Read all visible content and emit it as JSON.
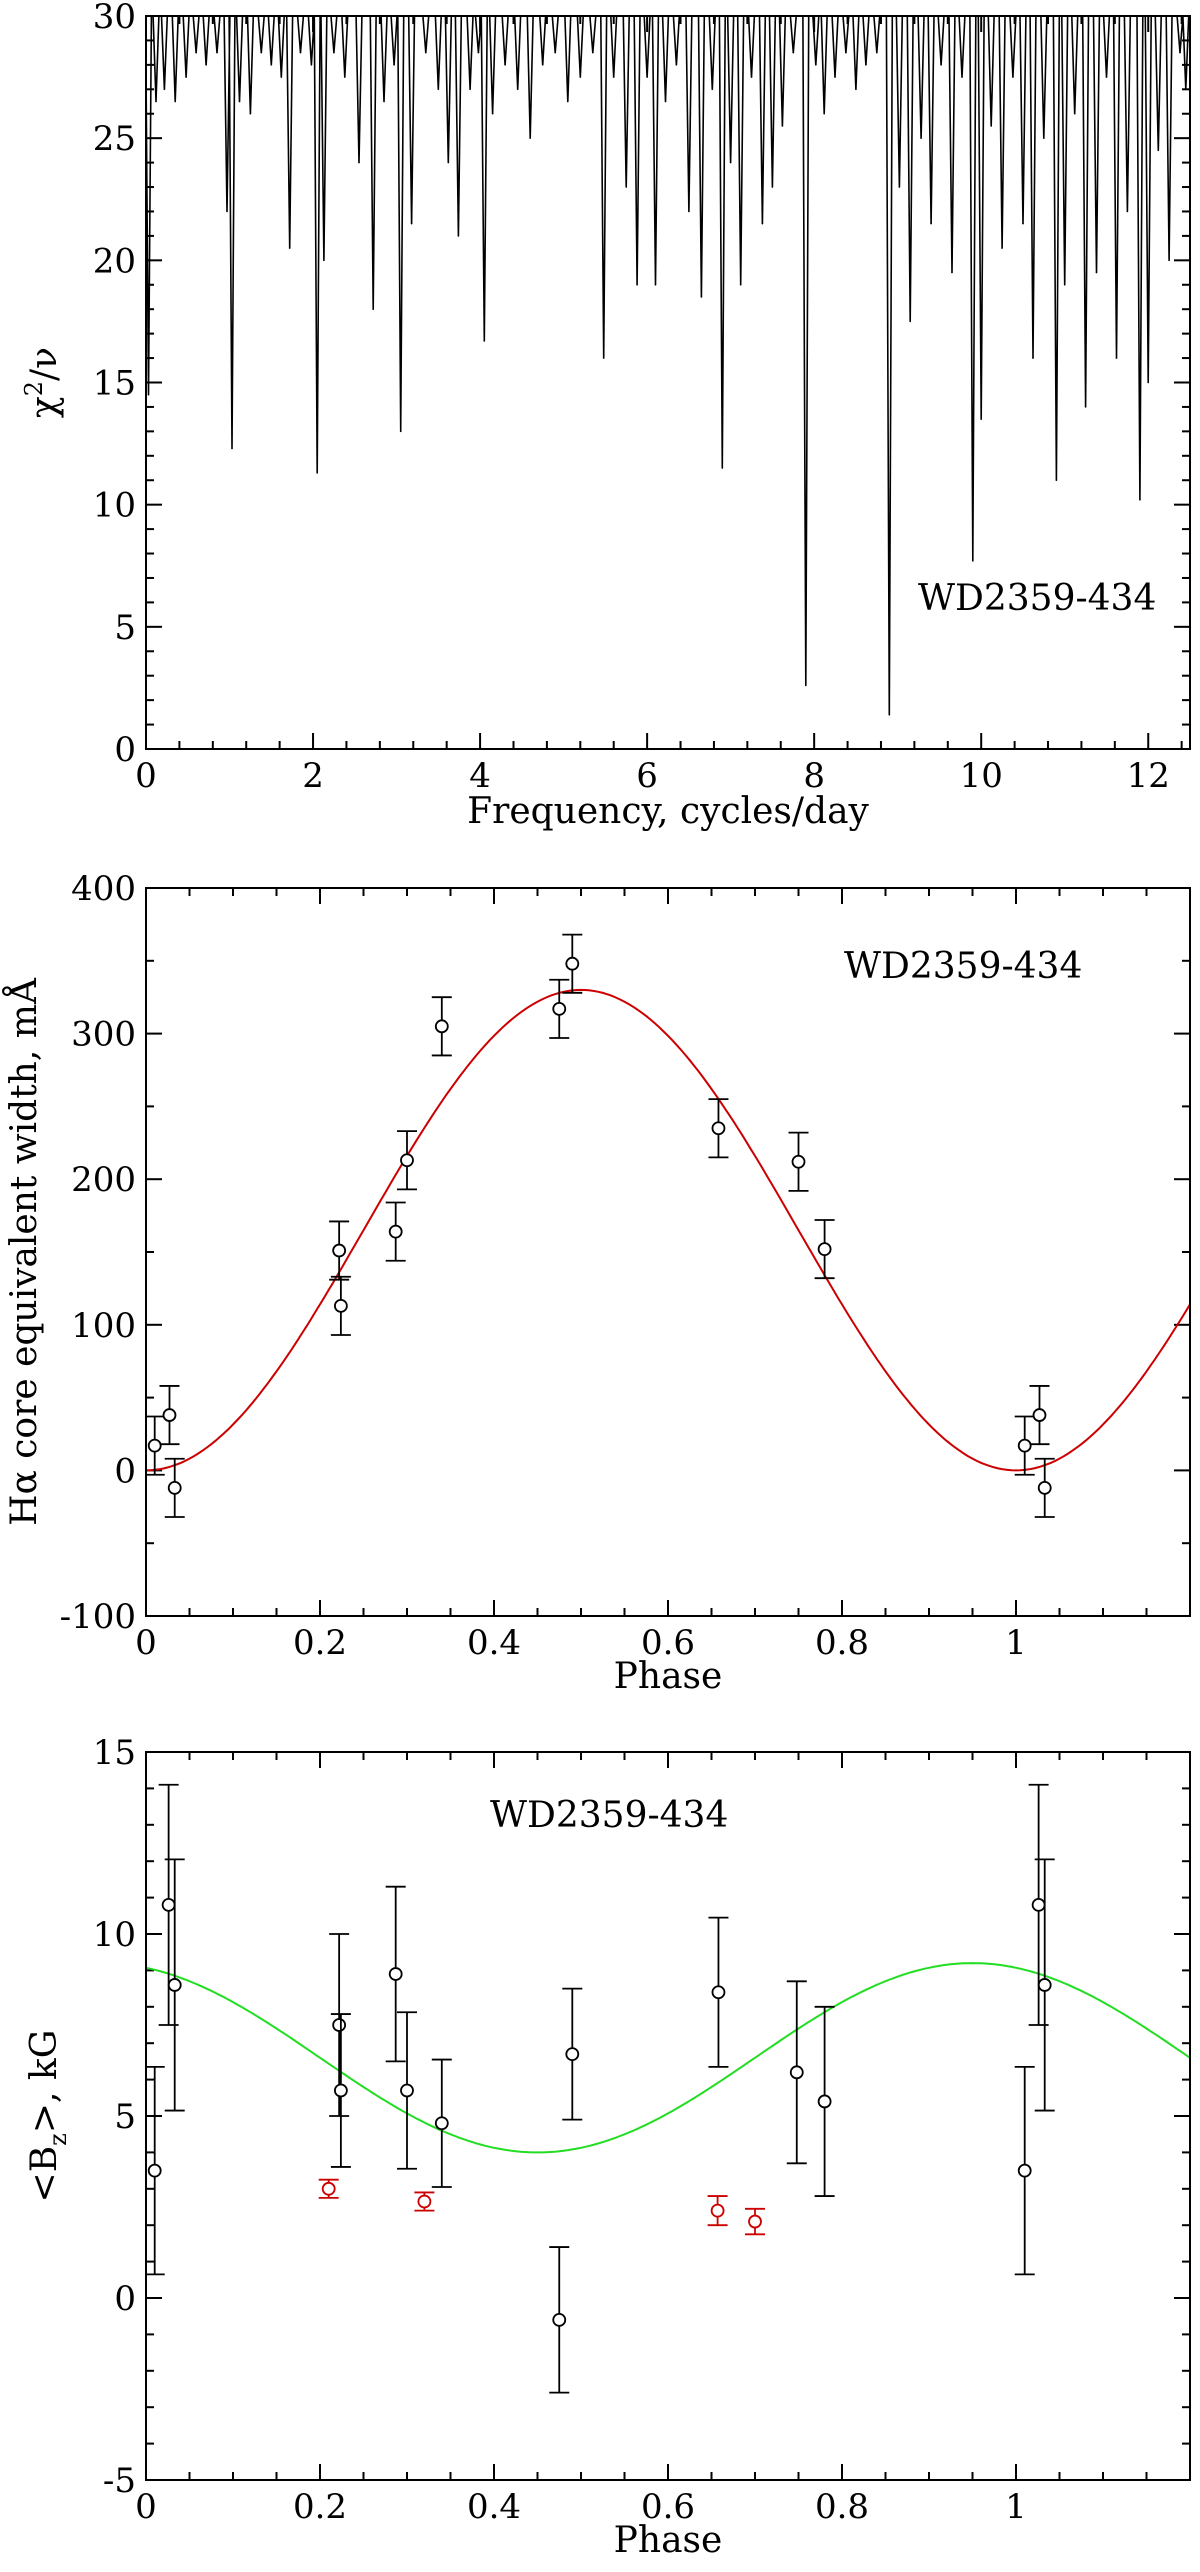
{
  "chart_data": [
    {
      "type": "line",
      "title": "",
      "xlabel": "Frequency, cycles/day",
      "ylabel": "χ²/ν",
      "ylabel_main": "χ",
      "ylabel_sup": "2",
      "ylabel_tail": "/ν",
      "xlim": [
        0,
        12.5
      ],
      "ylim": [
        0,
        30
      ],
      "xticks": [
        0,
        2,
        4,
        6,
        8,
        10,
        12
      ],
      "yticks": [
        0,
        5,
        10,
        15,
        20,
        25,
        30
      ],
      "xtick_labels": [
        "0",
        "2",
        "4",
        "6",
        "8",
        "10",
        "12"
      ],
      "ytick_labels": [
        "0",
        "5",
        "10",
        "15",
        "20",
        "25",
        "30"
      ],
      "annotation": "WD2359-434",
      "line_color": "#000000",
      "baseline": 30,
      "dips": [
        {
          "x": 0.03,
          "y": 14.5
        },
        {
          "x": 0.12,
          "y": 26.5
        },
        {
          "x": 0.22,
          "y": 27.0
        },
        {
          "x": 0.35,
          "y": 26.5
        },
        {
          "x": 0.48,
          "y": 27.5
        },
        {
          "x": 0.6,
          "y": 28.5
        },
        {
          "x": 0.72,
          "y": 28.0
        },
        {
          "x": 0.85,
          "y": 28.5
        },
        {
          "x": 0.97,
          "y": 22.0
        },
        {
          "x": 1.03,
          "y": 12.3
        },
        {
          "x": 1.12,
          "y": 26.5
        },
        {
          "x": 1.25,
          "y": 26.0
        },
        {
          "x": 1.38,
          "y": 28.5
        },
        {
          "x": 1.5,
          "y": 28.0
        },
        {
          "x": 1.62,
          "y": 27.5
        },
        {
          "x": 1.72,
          "y": 20.5
        },
        {
          "x": 1.85,
          "y": 28.5
        },
        {
          "x": 1.98,
          "y": 28.0
        },
        {
          "x": 2.05,
          "y": 11.3
        },
        {
          "x": 2.13,
          "y": 20.0
        },
        {
          "x": 2.25,
          "y": 28.5
        },
        {
          "x": 2.38,
          "y": 27.5
        },
        {
          "x": 2.55,
          "y": 24.0
        },
        {
          "x": 2.72,
          "y": 18.0
        },
        {
          "x": 2.85,
          "y": 26.5
        },
        {
          "x": 2.97,
          "y": 28.0
        },
        {
          "x": 3.05,
          "y": 13.0
        },
        {
          "x": 3.18,
          "y": 21.5
        },
        {
          "x": 3.35,
          "y": 28.5
        },
        {
          "x": 3.5,
          "y": 27.0
        },
        {
          "x": 3.62,
          "y": 24.0
        },
        {
          "x": 3.74,
          "y": 21.0
        },
        {
          "x": 3.88,
          "y": 27.0
        },
        {
          "x": 3.98,
          "y": 28.5
        },
        {
          "x": 4.05,
          "y": 16.7
        },
        {
          "x": 4.15,
          "y": 26.0
        },
        {
          "x": 4.3,
          "y": 28.0
        },
        {
          "x": 4.45,
          "y": 27.0
        },
        {
          "x": 4.6,
          "y": 25.0
        },
        {
          "x": 4.75,
          "y": 28.0
        },
        {
          "x": 4.9,
          "y": 28.5
        },
        {
          "x": 5.05,
          "y": 26.5
        },
        {
          "x": 5.2,
          "y": 27.5
        },
        {
          "x": 5.35,
          "y": 28.5
        },
        {
          "x": 5.48,
          "y": 16.0
        },
        {
          "x": 5.6,
          "y": 27.5
        },
        {
          "x": 5.75,
          "y": 23.0
        },
        {
          "x": 5.88,
          "y": 19.0
        },
        {
          "x": 6.0,
          "y": 27.5
        },
        {
          "x": 6.1,
          "y": 19.0
        },
        {
          "x": 6.22,
          "y": 26.5
        },
        {
          "x": 6.35,
          "y": 28.0
        },
        {
          "x": 6.5,
          "y": 22.0
        },
        {
          "x": 6.65,
          "y": 18.5
        },
        {
          "x": 6.78,
          "y": 27.0
        },
        {
          "x": 6.9,
          "y": 11.5
        },
        {
          "x": 7.0,
          "y": 24.0
        },
        {
          "x": 7.12,
          "y": 19.0
        },
        {
          "x": 7.25,
          "y": 27.5
        },
        {
          "x": 7.38,
          "y": 21.5
        },
        {
          "x": 7.5,
          "y": 23.0
        },
        {
          "x": 7.62,
          "y": 25.5
        },
        {
          "x": 7.75,
          "y": 28.5
        },
        {
          "x": 7.9,
          "y": 2.6
        },
        {
          "x": 8.02,
          "y": 28.0
        },
        {
          "x": 8.12,
          "y": 26.0
        },
        {
          "x": 8.25,
          "y": 27.5
        },
        {
          "x": 8.38,
          "y": 28.5
        },
        {
          "x": 8.5,
          "y": 27.0
        },
        {
          "x": 8.62,
          "y": 28.0
        },
        {
          "x": 8.75,
          "y": 28.5
        },
        {
          "x": 8.9,
          "y": 1.4
        },
        {
          "x": 9.02,
          "y": 23.0
        },
        {
          "x": 9.15,
          "y": 17.5
        },
        {
          "x": 9.28,
          "y": 25.0
        },
        {
          "x": 9.4,
          "y": 21.5
        },
        {
          "x": 9.52,
          "y": 28.0
        },
        {
          "x": 9.65,
          "y": 19.5
        },
        {
          "x": 9.77,
          "y": 27.5
        },
        {
          "x": 9.9,
          "y": 7.7
        },
        {
          "x": 10.0,
          "y": 13.5
        },
        {
          "x": 10.12,
          "y": 25.5
        },
        {
          "x": 10.25,
          "y": 20.5
        },
        {
          "x": 10.38,
          "y": 27.5
        },
        {
          "x": 10.5,
          "y": 21.5
        },
        {
          "x": 10.62,
          "y": 16.0
        },
        {
          "x": 10.75,
          "y": 25.0
        },
        {
          "x": 10.9,
          "y": 11.0
        },
        {
          "x": 11.0,
          "y": 19.0
        },
        {
          "x": 11.12,
          "y": 26.0
        },
        {
          "x": 11.25,
          "y": 14.0
        },
        {
          "x": 11.38,
          "y": 19.5
        },
        {
          "x": 11.5,
          "y": 27.5
        },
        {
          "x": 11.62,
          "y": 16.0
        },
        {
          "x": 11.75,
          "y": 22.0
        },
        {
          "x": 11.9,
          "y": 10.2
        },
        {
          "x": 12.0,
          "y": 15.0
        },
        {
          "x": 12.12,
          "y": 24.5
        },
        {
          "x": 12.25,
          "y": 20.0
        },
        {
          "x": 12.38,
          "y": 28.5
        },
        {
          "x": 12.45,
          "y": 27.0
        }
      ]
    },
    {
      "type": "scatter",
      "title": "",
      "xlabel": "Phase",
      "ylabel": "Hα core equivalent width, mÅ",
      "xlim": [
        0,
        1.2
      ],
      "ylim": [
        -100,
        400
      ],
      "xticks": [
        0,
        0.2,
        0.4,
        0.6,
        0.8,
        1
      ],
      "yticks": [
        -100,
        0,
        100,
        200,
        300,
        400
      ],
      "xtick_labels": [
        "0",
        "0.2",
        "0.4",
        "0.6",
        "0.8",
        "1"
      ],
      "ytick_labels": [
        "-100",
        "0",
        "100",
        "200",
        "300",
        "400"
      ],
      "annotation": "WD2359-434",
      "fit": {
        "type": "sine",
        "amplitude": 165,
        "offset": 165,
        "phase_of_max": 0.5,
        "period": 1,
        "color": "#cc0000"
      },
      "series": [
        {
          "name": "measurements",
          "color": "#000000",
          "points": [
            {
              "x": 0.01,
              "y": 17,
              "err": 20
            },
            {
              "x": 0.027,
              "y": 38,
              "err": 20
            },
            {
              "x": 0.033,
              "y": -12,
              "err": 20
            },
            {
              "x": 0.222,
              "y": 151,
              "err": 20
            },
            {
              "x": 0.224,
              "y": 113,
              "err": 20
            },
            {
              "x": 0.287,
              "y": 164,
              "err": 20
            },
            {
              "x": 0.3,
              "y": 213,
              "err": 20
            },
            {
              "x": 0.34,
              "y": 305,
              "err": 20
            },
            {
              "x": 0.475,
              "y": 317,
              "err": 20
            },
            {
              "x": 0.49,
              "y": 348,
              "err": 20
            },
            {
              "x": 0.658,
              "y": 235,
              "err": 20
            },
            {
              "x": 0.75,
              "y": 212,
              "err": 20
            },
            {
              "x": 0.78,
              "y": 152,
              "err": 20
            },
            {
              "x": 1.01,
              "y": 17,
              "err": 20
            },
            {
              "x": 1.027,
              "y": 38,
              "err": 20
            },
            {
              "x": 1.033,
              "y": -12,
              "err": 20
            }
          ]
        }
      ]
    },
    {
      "type": "scatter",
      "title": "",
      "xlabel": "Phase",
      "ylabel": "<Bz>, kG",
      "ylabel_main": "<B",
      "ylabel_sub": "z",
      "ylabel_tail": ">,  kG",
      "xlim": [
        0,
        1.2
      ],
      "ylim": [
        -5,
        15
      ],
      "xticks": [
        0,
        0.2,
        0.4,
        0.6,
        0.8,
        1
      ],
      "yticks": [
        -5,
        0,
        5,
        10,
        15
      ],
      "xtick_labels": [
        "0",
        "0.2",
        "0.4",
        "0.6",
        "0.8",
        "1"
      ],
      "ytick_labels": [
        "-5",
        "0",
        "5",
        "10",
        "15"
      ],
      "annotation": "WD2359-434",
      "fit": {
        "type": "sine",
        "amplitude": 2.6,
        "offset": 6.6,
        "phase_of_max": 0.95,
        "period": 1,
        "color": "#22dd22"
      },
      "series": [
        {
          "name": "black measurements",
          "color": "#000000",
          "points": [
            {
              "x": 0.01,
              "y": 3.5,
              "err": 2.85
            },
            {
              "x": 0.026,
              "y": 10.8,
              "err": 3.3
            },
            {
              "x": 0.033,
              "y": 8.6,
              "err": 3.45
            },
            {
              "x": 0.222,
              "y": 7.5,
              "err": 2.5
            },
            {
              "x": 0.224,
              "y": 5.7,
              "err": 2.1
            },
            {
              "x": 0.287,
              "y": 8.9,
              "err": 2.4
            },
            {
              "x": 0.3,
              "y": 5.7,
              "err": 2.15
            },
            {
              "x": 0.34,
              "y": 4.8,
              "err": 1.75
            },
            {
              "x": 0.475,
              "y": -0.6,
              "err": 2.0
            },
            {
              "x": 0.49,
              "y": 6.7,
              "err": 1.8
            },
            {
              "x": 0.658,
              "y": 8.4,
              "err": 2.05
            },
            {
              "x": 0.748,
              "y": 6.2,
              "err": 2.5
            },
            {
              "x": 0.78,
              "y": 5.4,
              "err": 2.6
            },
            {
              "x": 1.01,
              "y": 3.5,
              "err": 2.85
            },
            {
              "x": 1.026,
              "y": 10.8,
              "err": 3.3
            },
            {
              "x": 1.033,
              "y": 8.6,
              "err": 3.45
            }
          ]
        },
        {
          "name": "red measurements",
          "color": "#cc0000",
          "points": [
            {
              "x": 0.21,
              "y": 3.0,
              "err": 0.25
            },
            {
              "x": 0.32,
              "y": 2.65,
              "err": 0.25
            },
            {
              "x": 0.657,
              "y": 2.4,
              "err": 0.4
            },
            {
              "x": 0.7,
              "y": 2.1,
              "err": 0.35
            }
          ]
        }
      ]
    }
  ]
}
